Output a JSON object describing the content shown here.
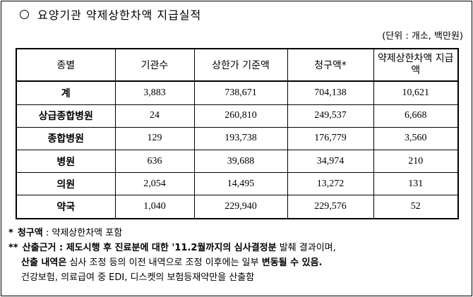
{
  "title": "요양기관 약제상한차액 지급실적",
  "unit": "(단위 : 개소, 백만원)",
  "table": {
    "headers": [
      "종별",
      "기관수",
      "상한가 기준액",
      "청구액*",
      "약제상한차액 지급액"
    ],
    "rows": [
      [
        "계",
        "3,883",
        "738,671",
        "704,138",
        "10,621"
      ],
      [
        "상급종합병원",
        "24",
        "260,810",
        "249,537",
        "6,668"
      ],
      [
        "종합병원",
        "129",
        "193,738",
        "176,779",
        "3,560"
      ],
      [
        "병원",
        "636",
        "39,688",
        "34,974",
        "210"
      ],
      [
        "의원",
        "2,054",
        "14,495",
        "13,272",
        "131"
      ],
      [
        "약국",
        "1,040",
        "229,940",
        "229,576",
        "52"
      ]
    ]
  },
  "notes": {
    "n1": {
      "mark": "*",
      "label": "청구액",
      "colon": " : ",
      "text": "약제상한차액 포함"
    },
    "n2": {
      "mark": "**",
      "label": "산출근거",
      "colon": " : ",
      "b1": "제도시행 후 진료분에 대한 '11.2월까지의 심사결정분",
      "t1": " 발췌 결과이며,",
      "b2": "산출 내역은",
      "t2": " 심사 조정 등의 이전 내역으로 조정 이후에는 일부 ",
      "b3": "변동될 수 있음.",
      "t3": "건강보험, 의료급여 중 EDI, 디스켓의 보험등재약만을 산출함"
    }
  }
}
